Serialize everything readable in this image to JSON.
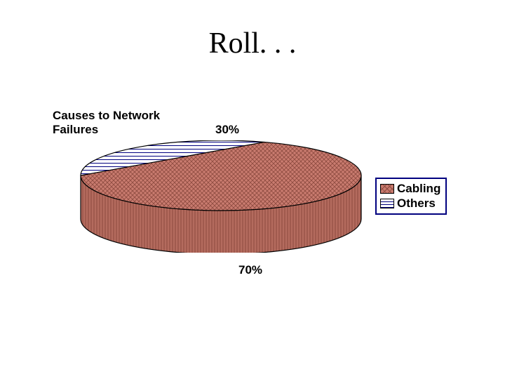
{
  "title": "Roll. . .",
  "chart": {
    "type": "pie-3d",
    "title": "Causes to Network\nFailures",
    "slices": [
      {
        "key": "others",
        "value": 30,
        "label": "30%",
        "fill": "#ffffff",
        "pattern": "h-stripes",
        "pattern_color": "#00007f"
      },
      {
        "key": "cabling",
        "value": 70,
        "label": "70%",
        "fill": "#c97b6f",
        "pattern": "diag-cross",
        "pattern_color": "#8c4a3f"
      }
    ],
    "side_fill": "#b46b5e",
    "outline": "#000000",
    "ellipse_rx": 200,
    "ellipse_ry": 50,
    "depth": 62,
    "background": "#ffffff"
  },
  "legend": {
    "border_color": "#00007f",
    "items": [
      {
        "key": "cabling",
        "label": "Cabling"
      },
      {
        "key": "others",
        "label": "Others"
      }
    ]
  }
}
